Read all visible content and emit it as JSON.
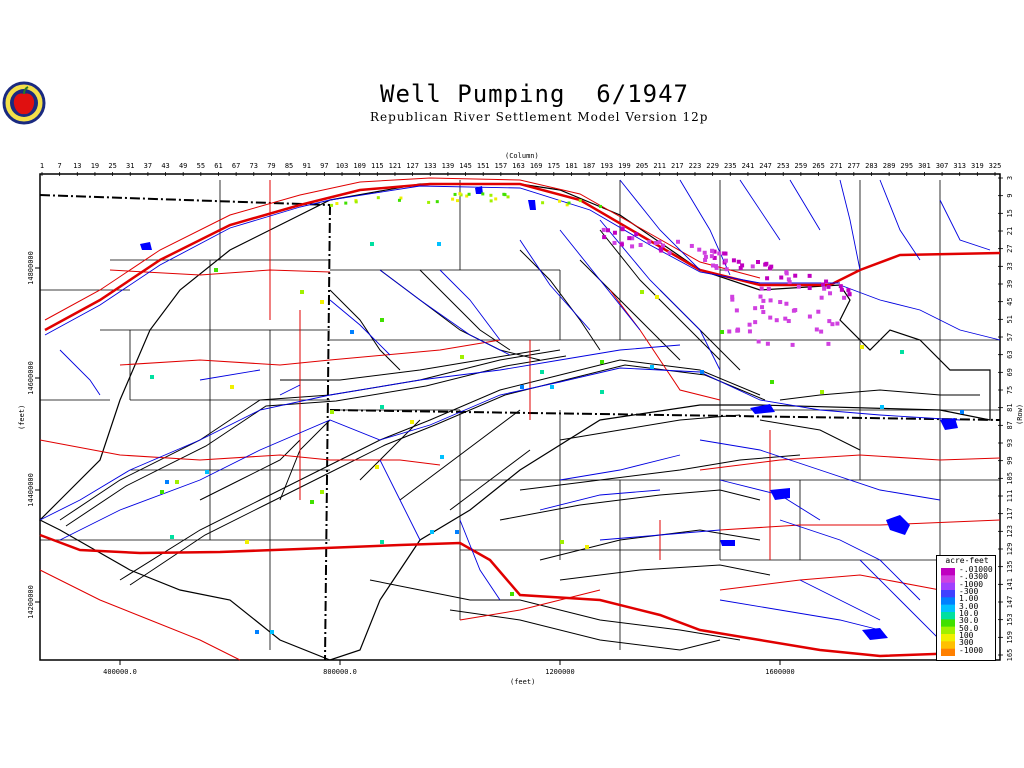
{
  "title": "Well Pumping  6/1947",
  "subtitle": "Republican River Settlement Model Version 12p",
  "axes": {
    "column_label": "(Column)",
    "row_label": "(Row)",
    "x_feet_label": "(feet)",
    "y_feet_label": "(feet)",
    "column_ticks": [
      "1",
      "7",
      "13",
      "19",
      "25",
      "31",
      "37",
      "43",
      "49",
      "55",
      "61",
      "67",
      "73",
      "79",
      "85",
      "91",
      "97",
      "103",
      "109",
      "115",
      "121",
      "127",
      "133",
      "139",
      "145",
      "151",
      "157",
      "163",
      "169",
      "175",
      "181",
      "187",
      "193",
      "199",
      "205",
      "211",
      "217",
      "223",
      "229",
      "235",
      "241",
      "247",
      "253",
      "259",
      "265",
      "271",
      "277",
      "283",
      "289",
      "295",
      "301",
      "307",
      "313",
      "319",
      "325"
    ],
    "row_ticks": [
      "3",
      "9",
      "15",
      "21",
      "27",
      "33",
      "39",
      "45",
      "51",
      "57",
      "63",
      "69",
      "75",
      "81",
      "87",
      "93",
      "99",
      "105",
      "111",
      "117",
      "123",
      "129",
      "135",
      "141",
      "147",
      "153",
      "159",
      "165"
    ],
    "x_feet_ticks": [
      "400000.0",
      "800000.0",
      "1200000",
      "1600000"
    ],
    "y_feet_ticks": [
      "14800000",
      "14600000",
      "14400000",
      "14200000"
    ]
  },
  "legend": {
    "title": "acre-feet",
    "entries": [
      {
        "label": "-.01000",
        "color": "#c000c0"
      },
      {
        "label": "-.0300",
        "color": "#d040e0"
      },
      {
        "label": "-1000",
        "color": "#a040ff"
      },
      {
        "label": "-300",
        "color": "#4040ff"
      },
      {
        "label": "1.00",
        "color": "#0080ff"
      },
      {
        "label": "3.00",
        "color": "#00c0ff"
      },
      {
        "label": "10.0",
        "color": "#00e0a0"
      },
      {
        "label": "30.0",
        "color": "#40e000"
      },
      {
        "label": "50.0",
        "color": "#a0f000"
      },
      {
        "label": "100",
        "color": "#f0f000"
      },
      {
        "label": "300",
        "color": "#ffc000"
      },
      {
        "label": "-1000",
        "color": "#ff8000"
      }
    ]
  },
  "colors": {
    "rivers": "#0000e0",
    "roads": "#e00000",
    "grid_outline": "#000000",
    "state_line": "#000000"
  }
}
